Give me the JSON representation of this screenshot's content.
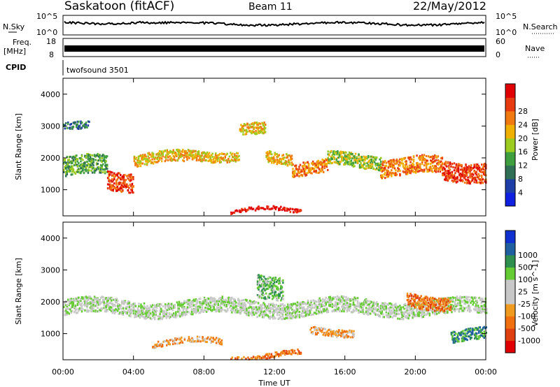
{
  "header": {
    "title": "Saskatoon (fitACF)",
    "beam": "Beam 11",
    "date": "22/May/2012"
  },
  "strip": {
    "nsky_label": "N.Sky",
    "nsky_ticks": [
      "10^5",
      "10^0"
    ],
    "nsearch_label": "N.Search",
    "nsearch_ticks": [
      "10^5",
      "10^0"
    ],
    "freq_label_1": "Freq.",
    "freq_label_2": "[MHz]",
    "freq_ticks": [
      "18",
      "8"
    ],
    "nave_label": "Nave",
    "nave_ticks": [
      "60",
      "0"
    ],
    "cpid_label": "CPID",
    "cpid_value": "twofsound 3501"
  },
  "axes": {
    "ylabel": "Slant Range [km]",
    "xlabel": "Time UT",
    "y_ticks": [
      "1000",
      "2000",
      "3000",
      "4000"
    ],
    "x_ticks": [
      "00:00",
      "04:00",
      "08:00",
      "12:00",
      "16:00",
      "20:00",
      "00:00"
    ]
  },
  "colorbars": {
    "power": {
      "label": "Power [dB]",
      "ticks": [
        "4",
        "8",
        "12",
        "16",
        "20",
        "24",
        "28"
      ],
      "colors": [
        "#1020e0",
        "#1e3ea8",
        "#2f6f55",
        "#3f9f3f",
        "#9ccc20",
        "#f0b000",
        "#f07a10",
        "#e83a10",
        "#e00000"
      ]
    },
    "velocity": {
      "label": "Velocity [m s^-1]",
      "ticks": [
        "1000",
        "500",
        "100",
        "25",
        "-25",
        "-100",
        "-500",
        "-1000"
      ],
      "colors": [
        "#1030d0",
        "#2060a0",
        "#2f8f4f",
        "#66cc33",
        "#c8c8c8",
        "#c8c8c8",
        "#f09a20",
        "#f07010",
        "#e04010",
        "#e00000"
      ]
    }
  },
  "chart_data": [
    {
      "type": "heatmap",
      "name": "power",
      "x_range_hours": [
        0,
        24
      ],
      "y_range_km": [
        180,
        4500
      ],
      "bands": [
        {
          "t0": 0.0,
          "t1": 2.5,
          "center": 1700,
          "width": 500,
          "level": 3
        },
        {
          "t0": 2.5,
          "t1": 4.0,
          "center": 1300,
          "width": 500,
          "level": 7
        },
        {
          "t0": 4.0,
          "t1": 7.0,
          "center": 1950,
          "width": 300,
          "level": 5
        },
        {
          "t0": 7.0,
          "t1": 10.0,
          "center": 2100,
          "width": 250,
          "level": 5
        },
        {
          "t0": 10.0,
          "t1": 11.5,
          "center": 2800,
          "width": 300,
          "level": 5
        },
        {
          "t0": 11.5,
          "t1": 13.0,
          "center": 2000,
          "width": 300,
          "level": 5
        },
        {
          "t0": 13.0,
          "t1": 15.0,
          "center": 1700,
          "width": 350,
          "level": 6
        },
        {
          "t0": 15.0,
          "t1": 18.0,
          "center": 1900,
          "width": 350,
          "level": 4
        },
        {
          "t0": 18.0,
          "t1": 21.5,
          "center": 1700,
          "width": 450,
          "level": 6
        },
        {
          "t0": 21.5,
          "t1": 24.0,
          "center": 1600,
          "width": 500,
          "level": 7
        },
        {
          "t0": 9.5,
          "t1": 13.5,
          "center": 300,
          "width": 100,
          "level": 8
        },
        {
          "t0": 0.0,
          "t1": 1.5,
          "center": 3100,
          "width": 200,
          "level": 2
        }
      ]
    },
    {
      "type": "heatmap",
      "name": "velocity",
      "x_range_hours": [
        0,
        24
      ],
      "y_range_km": [
        180,
        4500
      ],
      "bands": [
        {
          "t0": 0.0,
          "t1": 24.0,
          "center": 1800,
          "width": 400,
          "level": 4
        },
        {
          "t0": 5.0,
          "t1": 9.0,
          "center": 700,
          "width": 150,
          "level": 6
        },
        {
          "t0": 9.5,
          "t1": 13.5,
          "center": 300,
          "width": 120,
          "level": 7
        },
        {
          "t0": 14.0,
          "t1": 16.5,
          "center": 1100,
          "width": 200,
          "level": 6
        },
        {
          "t0": 19.5,
          "t1": 22.0,
          "center": 2000,
          "width": 350,
          "level": 7
        },
        {
          "t0": 22.0,
          "t1": 24.0,
          "center": 900,
          "width": 300,
          "level": 2
        },
        {
          "t0": 11.0,
          "t1": 12.5,
          "center": 2500,
          "width": 600,
          "level": 3
        }
      ]
    }
  ]
}
